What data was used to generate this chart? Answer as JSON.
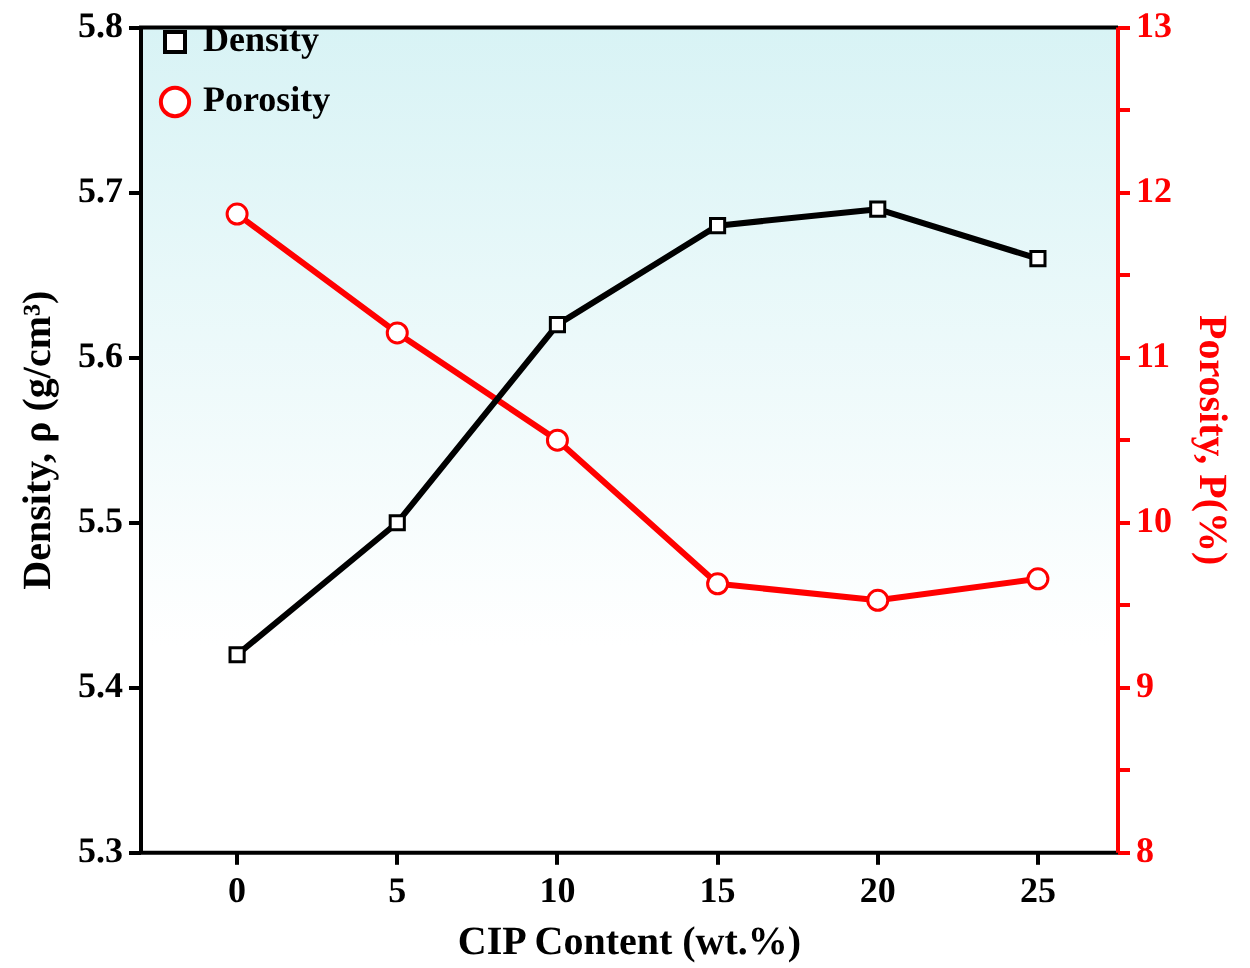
{
  "chart_data": {
    "type": "line",
    "xlabel": "CIP Content (wt.%)",
    "ylabel": "Density, ρ (g/cm³)",
    "y2label": "Porosity, P(%)",
    "x": [
      0,
      5,
      10,
      15,
      20,
      25
    ],
    "xlim": [
      -3,
      27.5
    ],
    "xticks": [
      0,
      5,
      10,
      15,
      20,
      25
    ],
    "ylim": [
      5.3,
      5.8
    ],
    "yticks": [
      5.3,
      5.4,
      5.5,
      5.6,
      5.7,
      5.8
    ],
    "y2lim": [
      8,
      13
    ],
    "y2ticks": [
      8,
      {
        "value": 8.5,
        "label": null
      },
      9,
      {
        "value": 9.5,
        "label": null
      },
      10,
      {
        "value": 10.5,
        "label": null
      },
      11,
      {
        "value": 11.5,
        "label": null
      },
      12,
      {
        "value": 12.5,
        "label": null
      },
      13
    ],
    "legend": "top left",
    "grid": false,
    "line_style": "solid",
    "series": [
      {
        "name": "Density",
        "color": "#000000",
        "marker": "square",
        "values": [
          5.42,
          5.5,
          5.62,
          5.68,
          5.69,
          5.66
        ]
      },
      {
        "name": "Porosity",
        "color": "#ff0000",
        "marker": "circle",
        "axis": "y2",
        "values": [
          11.87,
          11.15,
          10.5,
          9.63,
          9.53,
          9.66
        ]
      }
    ]
  }
}
